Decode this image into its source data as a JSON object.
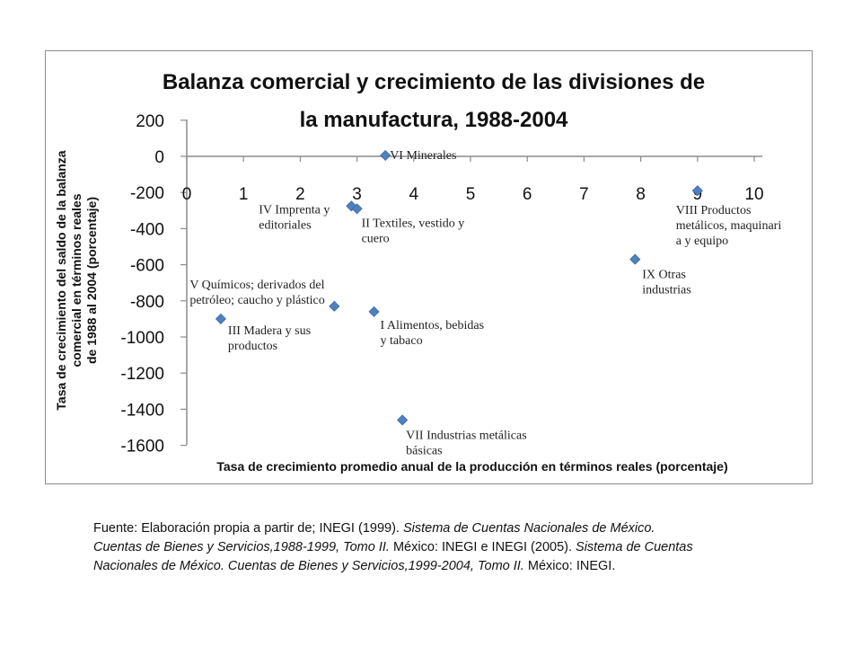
{
  "chart_data": {
    "type": "scatter",
    "title_lines": [
      "Balanza comercial y crecimiento de las divisiones de",
      "la manufactura, 1988-2004"
    ],
    "xlabel": "Tasa de crecimiento promedio anual de la producción en términos reales (porcentaje)",
    "ylabel_lines": [
      "Tasa de crecimiento del saldo de la balanza",
      "comercial en términos reales",
      "de 1988 al 2004 (porcentaje)"
    ],
    "xlim": [
      0,
      10
    ],
    "ylim": [
      -1600,
      200
    ],
    "xticks": [
      "0",
      "1",
      "2",
      "3",
      "4",
      "5",
      "6",
      "7",
      "8",
      "9",
      "10"
    ],
    "yticks": [
      "200",
      "0",
      "-200",
      "-400",
      "-600",
      "-800",
      "-1000",
      "-1200",
      "-1400",
      "-1600"
    ],
    "marker_color": "#4f81bd",
    "points": [
      {
        "x": 3.5,
        "y": 5,
        "label": [
          "VI Minerales"
        ]
      },
      {
        "x": 2.9,
        "y": -275,
        "label": [
          "IV Imprenta y",
          "editoriales"
        ]
      },
      {
        "x": 3.0,
        "y": -290,
        "label": [
          "II Textiles, vestido y",
          "cuero"
        ]
      },
      {
        "x": 9.0,
        "y": -190,
        "label": [
          "VIII Productos",
          "metálicos, maquinari",
          "a y equipo"
        ]
      },
      {
        "x": 7.9,
        "y": -570,
        "label": [
          "IX Otras",
          "industrias"
        ]
      },
      {
        "x": 2.6,
        "y": -830,
        "label": [
          "V Químicos; derivados del",
          "petróleo; caucho y plástico"
        ]
      },
      {
        "x": 0.6,
        "y": -900,
        "label": [
          "III Madera y sus",
          "productos"
        ]
      },
      {
        "x": 3.3,
        "y": -860,
        "label": [
          "I Alimentos, bebidas",
          "y tabaco"
        ]
      },
      {
        "x": 3.8,
        "y": -1460,
        "label": [
          "VII Industrias metálicas",
          "básicas"
        ]
      }
    ]
  },
  "source_note": {
    "line1_plain": "Fuente: Elaboración propia a partir de; INEGI (1999). ",
    "line1_italic": "Sistema de Cuentas Nacionales de México.",
    "line2_italic": "Cuentas de Bienes y Servicios,1988-1999, Tomo II.",
    "line2_plain": " México: INEGI e INEGI (2005). ",
    "line2_italic_b": "Sistema de Cuentas",
    "line3_italic": "Nacionales de México. Cuentas de Bienes y Servicios,1999-2004, Tomo II.",
    "line3_plain": " México: INEGI."
  }
}
